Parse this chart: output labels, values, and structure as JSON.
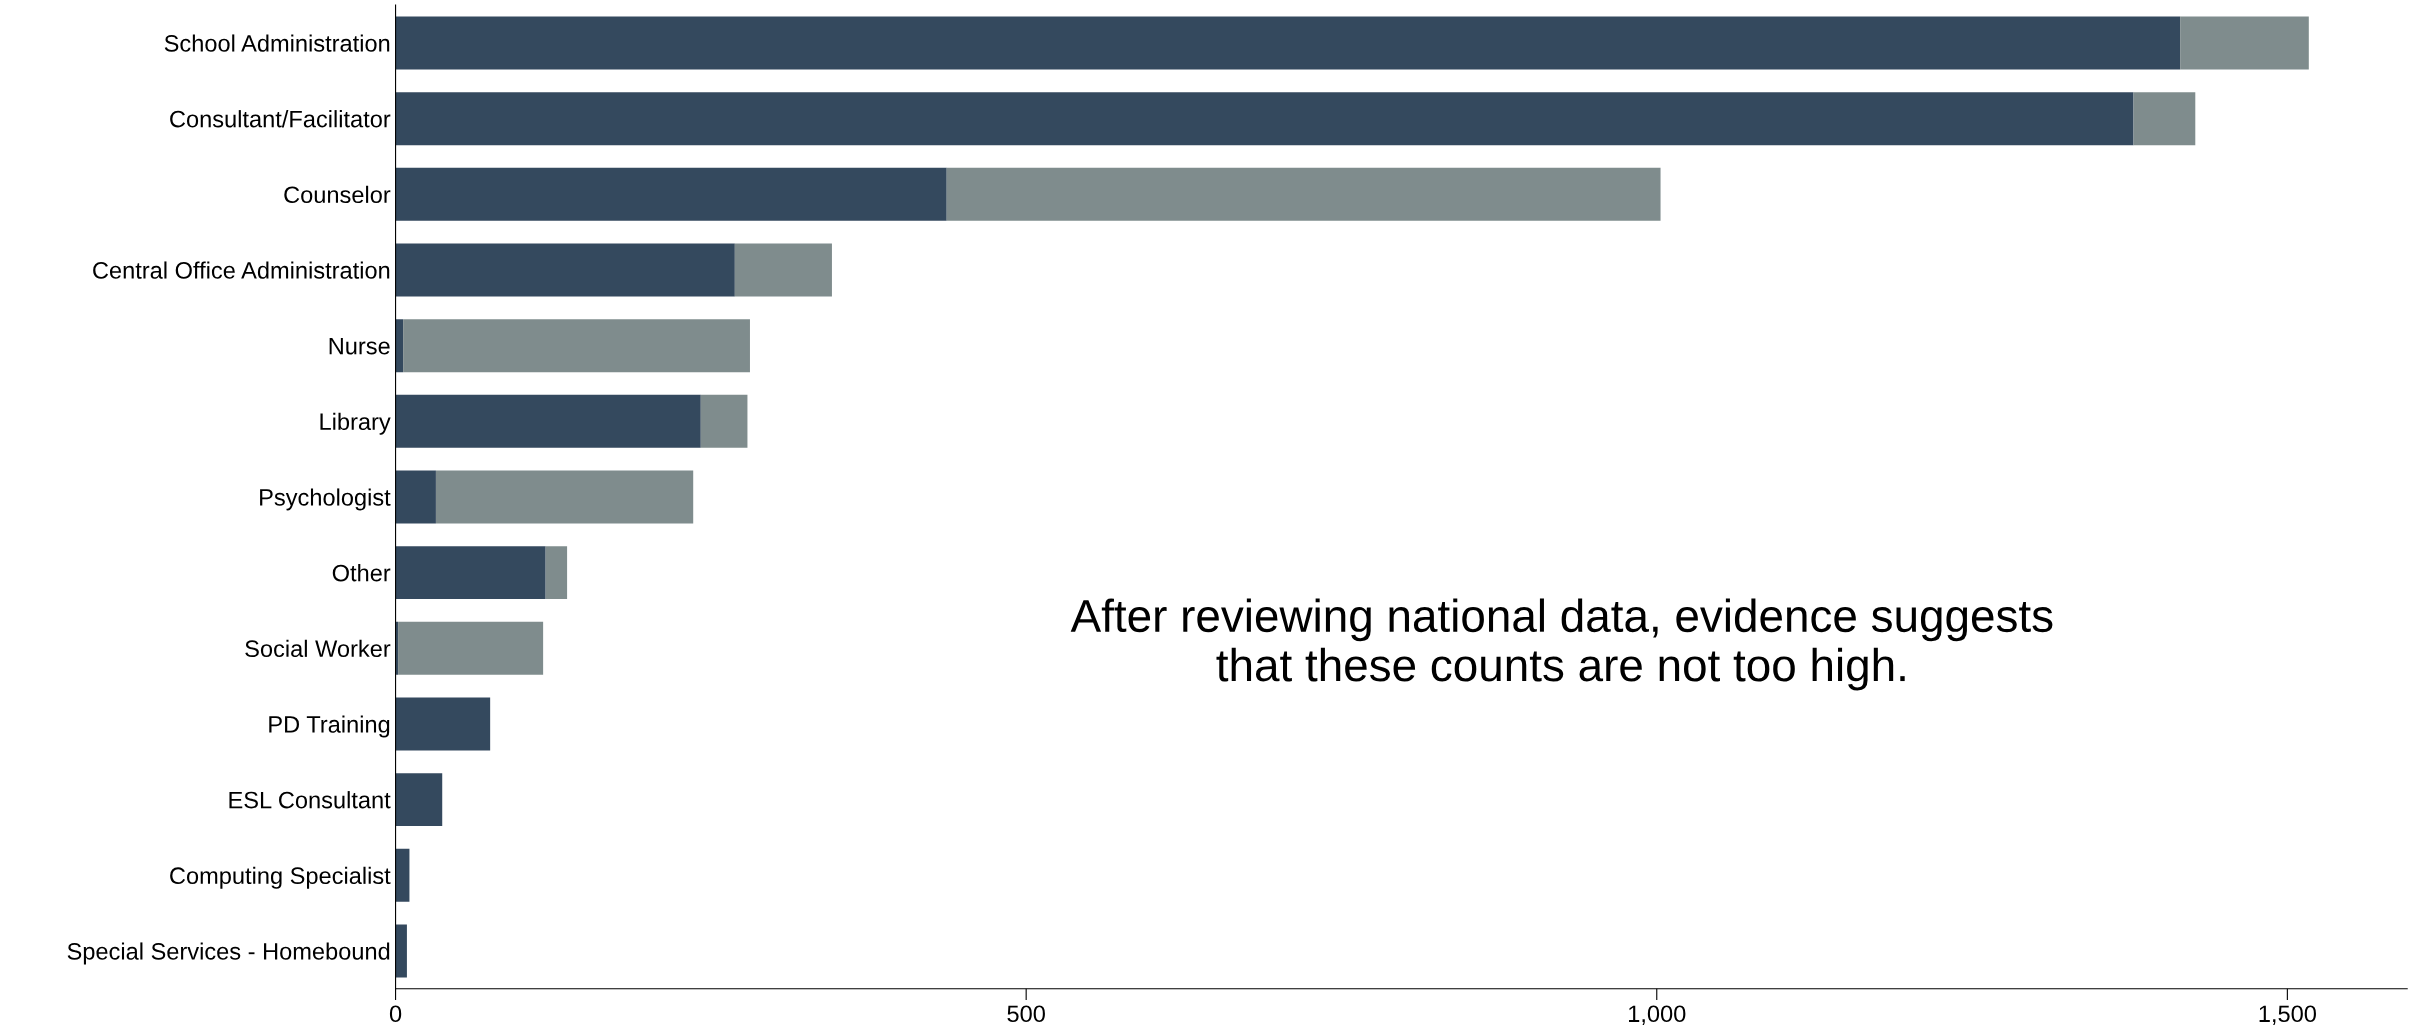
{
  "chart_data": {
    "type": "bar",
    "orientation": "horizontal",
    "stacked": true,
    "categories": [
      "School Administration",
      "Consultant/Facilitator",
      "Counselor",
      "Central Office Administration",
      "Nurse",
      "Library",
      "Psychologist",
      "Other",
      "Social Worker",
      "PD Training",
      "ESL Consultant",
      "Computing Specialist",
      "Special Services - Homebound"
    ],
    "series": [
      {
        "color": "#34495e",
        "values": [
          1415,
          1378,
          437,
          269,
          6,
          242,
          32,
          119,
          2,
          75,
          37,
          11,
          9
        ]
      },
      {
        "color": "#7f8c8d",
        "values": [
          102,
          49,
          566,
          77,
          275,
          37,
          204,
          17,
          115,
          null,
          null,
          null,
          null
        ]
      }
    ],
    "xlim": [
      0,
      1595
    ],
    "xticks": [
      0,
      500,
      {
        "value": 1000,
        "label": "1,000"
      },
      {
        "value": 1500,
        "label": "1,500"
      }
    ],
    "grid": false,
    "legend": false,
    "annotations": [
      "After reviewing national data, evidence suggests\nthat these counts are not too high."
    ]
  }
}
